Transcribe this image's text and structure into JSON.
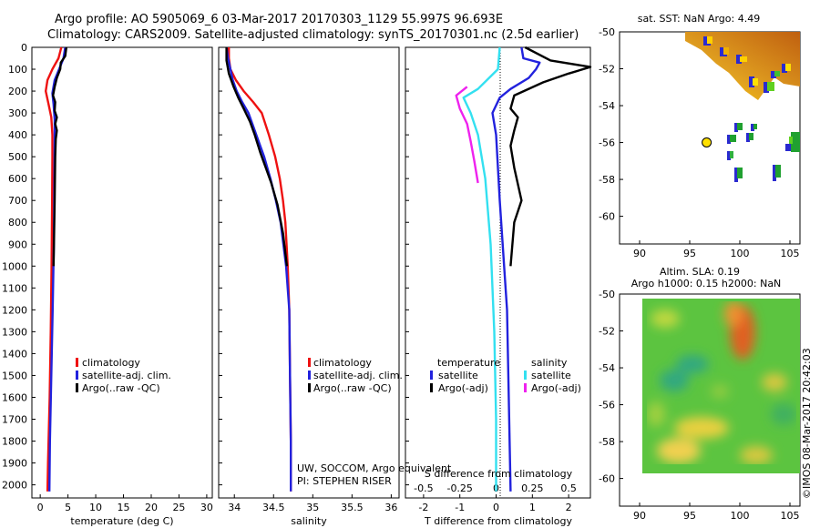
{
  "header": {
    "line1": "Argo profile: AO 5905069_6 03-Mar-2017 20170303_1129 55.997S 96.693E",
    "line2": "Climatology: CARS2009. Satellite-adjusted climatology: synTS_20170301.nc (2.5d earlier)"
  },
  "colors": {
    "climatology": "#ee1111",
    "satellite": "#2222dd",
    "argo": "#000000",
    "sat_salinity": "#33e0f0",
    "argo_salinity": "#ee22ee"
  },
  "chart_data": [
    {
      "type": "line",
      "id": "temperature",
      "xlabel": "temperature (deg C)",
      "ylabel": "pressure",
      "xlim": [
        -1.5,
        31
      ],
      "ylim": [
        2060,
        0
      ],
      "xticks": [
        0,
        5,
        10,
        15,
        20,
        25,
        30
      ],
      "yticks": [
        0,
        100,
        200,
        300,
        400,
        500,
        600,
        700,
        800,
        900,
        1000,
        1100,
        1200,
        1300,
        1400,
        1500,
        1600,
        1700,
        1800,
        1900,
        2000
      ],
      "legend": [
        "climatology",
        "satellite-adj. clim.",
        "Argo(..raw -QC)"
      ],
      "series": [
        {
          "name": "climatology",
          "color": "#ee1111",
          "points": [
            [
              3.8,
              0
            ],
            [
              3.3,
              50
            ],
            [
              2.2,
              100
            ],
            [
              1.3,
              150
            ],
            [
              1.0,
              200
            ],
            [
              1.5,
              260
            ],
            [
              2.0,
              320
            ],
            [
              2.2,
              400
            ],
            [
              2.2,
              500
            ],
            [
              2.15,
              700
            ],
            [
              2.05,
              1000
            ],
            [
              1.9,
              1300
            ],
            [
              1.7,
              1600
            ],
            [
              1.4,
              1900
            ],
            [
              1.3,
              2030
            ]
          ]
        },
        {
          "name": "satellite-adj. clim.",
          "color": "#2222dd",
          "points": [
            [
              4.5,
              0
            ],
            [
              4.2,
              50
            ],
            [
              3.4,
              100
            ],
            [
              2.6,
              150
            ],
            [
              2.2,
              210
            ],
            [
              2.4,
              260
            ],
            [
              2.6,
              330
            ],
            [
              2.6,
              400
            ],
            [
              2.55,
              600
            ],
            [
              2.45,
              900
            ],
            [
              2.25,
              1200
            ],
            [
              2.0,
              1500
            ],
            [
              1.75,
              1800
            ],
            [
              1.65,
              2030
            ]
          ]
        },
        {
          "name": "Argo",
          "color": "#000000",
          "points": [
            [
              4.7,
              0
            ],
            [
              4.5,
              40
            ],
            [
              3.7,
              70
            ],
            [
              3.6,
              100
            ],
            [
              3.0,
              140
            ],
            [
              2.6,
              180
            ],
            [
              2.3,
              220
            ],
            [
              2.7,
              250
            ],
            [
              2.6,
              290
            ],
            [
              3.0,
              320
            ],
            [
              2.7,
              350
            ],
            [
              3.0,
              380
            ],
            [
              2.8,
              420
            ],
            [
              2.7,
              500
            ],
            [
              2.6,
              700
            ],
            [
              2.4,
              1000
            ]
          ]
        }
      ]
    },
    {
      "type": "line",
      "id": "salinity",
      "xlabel": "salinity",
      "xlim": [
        33.8,
        36.1
      ],
      "ylim": [
        2060,
        0
      ],
      "xticks": [
        34,
        34.5,
        35,
        35.5,
        36
      ],
      "legend": [
        "climatology",
        "satellite-adj. clim.",
        "Argo(..raw -QC)"
      ],
      "annotations": [
        "UW, SOCCOM, Argo equivalent",
        "PI: STEPHEN RISER"
      ],
      "series": [
        {
          "name": "climatology",
          "color": "#ee1111",
          "points": [
            [
              33.93,
              0
            ],
            [
              33.93,
              50
            ],
            [
              33.95,
              100
            ],
            [
              34.02,
              150
            ],
            [
              34.12,
              200
            ],
            [
              34.24,
              250
            ],
            [
              34.35,
              300
            ],
            [
              34.44,
              400
            ],
            [
              34.52,
              500
            ],
            [
              34.58,
              600
            ],
            [
              34.62,
              700
            ],
            [
              34.65,
              800
            ],
            [
              34.68,
              1000
            ],
            [
              34.7,
              1200
            ],
            [
              34.71,
              1500
            ],
            [
              34.72,
              1800
            ],
            [
              34.72,
              2030
            ]
          ]
        },
        {
          "name": "satellite-adj. clim.",
          "color": "#2222dd",
          "points": [
            [
              33.9,
              0
            ],
            [
              33.92,
              50
            ],
            [
              33.95,
              100
            ],
            [
              33.98,
              150
            ],
            [
              34.03,
              200
            ],
            [
              34.1,
              250
            ],
            [
              34.18,
              300
            ],
            [
              34.28,
              400
            ],
            [
              34.38,
              500
            ],
            [
              34.46,
              600
            ],
            [
              34.53,
              700
            ],
            [
              34.59,
              800
            ],
            [
              34.66,
              1000
            ],
            [
              34.7,
              1200
            ],
            [
              34.71,
              1500
            ],
            [
              34.72,
              1800
            ],
            [
              34.72,
              2030
            ]
          ]
        },
        {
          "name": "Argo",
          "color": "#000000",
          "points": [
            [
              33.9,
              0
            ],
            [
              33.9,
              60
            ],
            [
              33.93,
              120
            ],
            [
              33.99,
              180
            ],
            [
              34.05,
              230
            ],
            [
              34.12,
              280
            ],
            [
              34.2,
              340
            ],
            [
              34.26,
              400
            ],
            [
              34.33,
              480
            ],
            [
              34.4,
              550
            ],
            [
              34.47,
              620
            ],
            [
              34.55,
              720
            ],
            [
              34.62,
              850
            ],
            [
              34.67,
              1000
            ]
          ]
        }
      ]
    },
    {
      "type": "line",
      "id": "difference",
      "xlabel": "T difference from climatology",
      "xlabel2": "S difference from climatology",
      "xlim": [
        -2.5,
        2.6
      ],
      "ylim": [
        2060,
        0
      ],
      "xticks": [
        -2,
        -1,
        0,
        1,
        2
      ],
      "xticks2": [
        -0.5,
        -0.25,
        0,
        0.25,
        0.5
      ],
      "legend_temperature_title": "temperature",
      "legend_salinity_title": "salinity",
      "legend": [
        "satellite",
        "Argo(-adj)",
        "satellite",
        "Argo(-adj)"
      ],
      "series": [
        {
          "name": "T satellite",
          "color": "#2222dd",
          "points": [
            [
              0.7,
              0
            ],
            [
              0.75,
              50
            ],
            [
              1.2,
              70
            ],
            [
              1.1,
              100
            ],
            [
              0.9,
              140
            ],
            [
              0.4,
              190
            ],
            [
              0.1,
              230
            ],
            [
              -0.1,
              300
            ],
            [
              0.0,
              400
            ],
            [
              0.1,
              700
            ],
            [
              0.3,
              1200
            ],
            [
              0.35,
              1600
            ],
            [
              0.4,
              2030
            ]
          ]
        },
        {
          "name": "T Argo",
          "color": "#000000",
          "points": [
            [
              0.8,
              0
            ],
            [
              1.5,
              60
            ],
            [
              2.6,
              90
            ],
            [
              2.0,
              120
            ],
            [
              1.3,
              160
            ],
            [
              0.5,
              220
            ],
            [
              0.4,
              280
            ],
            [
              0.6,
              320
            ],
            [
              0.5,
              380
            ],
            [
              0.4,
              450
            ],
            [
              0.5,
              550
            ],
            [
              0.7,
              700
            ],
            [
              0.5,
              800
            ],
            [
              0.4,
              1000
            ]
          ]
        },
        {
          "name": "S satellite",
          "color": "#33e0f0",
          "points": [
            [
              0.1,
              0
            ],
            [
              0.05,
              100
            ],
            [
              -0.5,
              190
            ],
            [
              -0.9,
              230
            ],
            [
              -0.7,
              300
            ],
            [
              -0.5,
              400
            ],
            [
              -0.3,
              600
            ],
            [
              -0.15,
              900
            ],
            [
              -0.05,
              1300
            ],
            [
              0.0,
              1700
            ],
            [
              0.0,
              2030
            ]
          ]
        },
        {
          "name": "S Argo",
          "color": "#ee22ee",
          "points": [
            [
              -0.8,
              180
            ],
            [
              -1.1,
              220
            ],
            [
              -1.0,
              280
            ],
            [
              -0.8,
              350
            ],
            [
              -0.7,
              430
            ],
            [
              -0.6,
              520
            ],
            [
              -0.5,
              620
            ]
          ]
        }
      ]
    },
    {
      "type": "heatmap",
      "id": "sst-map",
      "title": "sat. SST: NaN Argo: 4.49",
      "xlim": [
        88,
        106
      ],
      "ylim": [
        -61.5,
        -50
      ],
      "xticks": [
        90,
        95,
        100,
        105
      ],
      "yticks": [
        -50,
        -52,
        -54,
        -56,
        -58,
        -60
      ],
      "marker": {
        "lon": 96.693,
        "lat": -55.997
      }
    },
    {
      "type": "heatmap",
      "id": "sla-map",
      "title": "Altim. SLA: 0.19",
      "subtitle": "Argo h1000: 0.15 h2000: NaN",
      "xlim": [
        88,
        106
      ],
      "ylim": [
        -61.5,
        -50
      ],
      "xticks": [
        90,
        95,
        100,
        105
      ],
      "yticks": [
        -50,
        -52,
        -54,
        -56,
        -58,
        -60
      ]
    }
  ],
  "watermark": "©IMOS 08-Mar-2017 20:42:03"
}
